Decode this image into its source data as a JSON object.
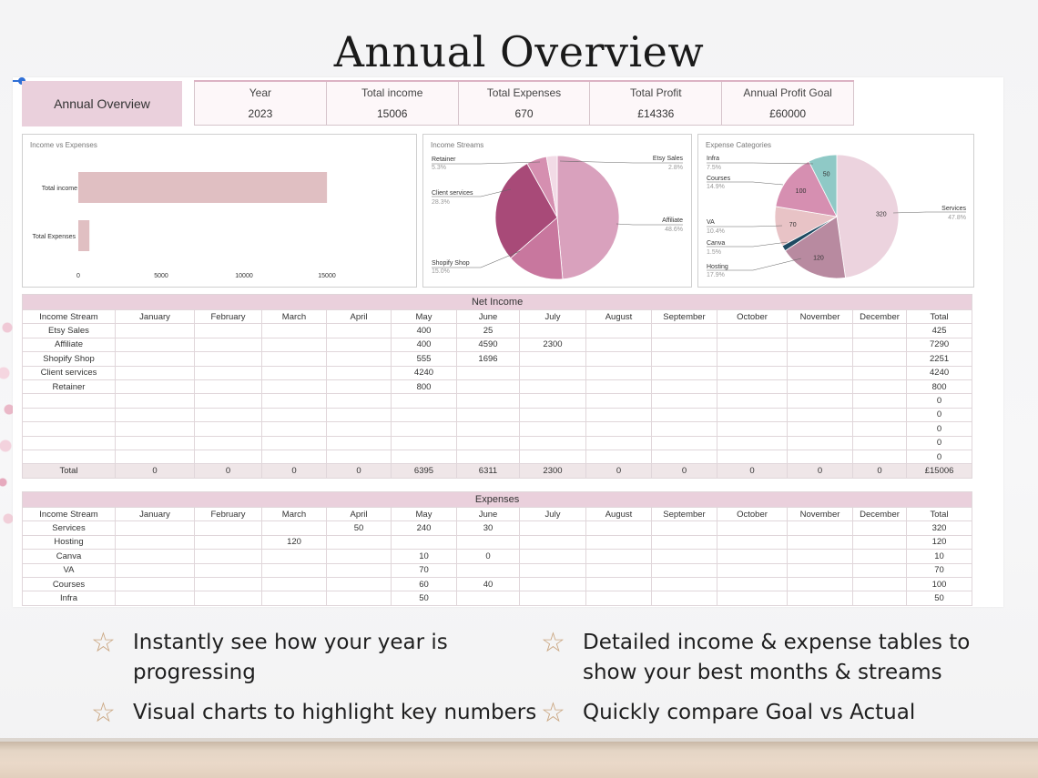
{
  "page_title": "Annual Overview",
  "overview_label": "Annual Overview",
  "kpis": [
    {
      "label": "Year",
      "value": "2023"
    },
    {
      "label": "Total income",
      "value": "15006"
    },
    {
      "label": "Total Expenses",
      "value": "670"
    },
    {
      "label": "Total Profit",
      "value": "£14336"
    },
    {
      "label": "Annual Profit Goal",
      "value": "£60000"
    }
  ],
  "charts": {
    "income_vs_expenses": {
      "title": "Income vs Expenses",
      "type": "bar",
      "categories": [
        "Total income",
        "Total Expenses"
      ],
      "values": [
        15006,
        670
      ],
      "ticks": [
        "0",
        "5000",
        "10000",
        "15000"
      ],
      "xlim": [
        0,
        15000
      ],
      "color": "#e0bfc2"
    },
    "income_streams": {
      "title": "Income Streams",
      "type": "pie",
      "slices": [
        {
          "label": "Affiliate",
          "pct": "48.6%",
          "value": 48.6,
          "color": "#d9a1bd"
        },
        {
          "label": "Shopify Shop",
          "pct": "15.0%",
          "value": 15.0,
          "color": "#c8779e"
        },
        {
          "label": "Client services",
          "pct": "28.3%",
          "value": 28.3,
          "color": "#a84a78"
        },
        {
          "label": "Retainer",
          "pct": "5.3%",
          "value": 5.3,
          "color": "#d58fb0"
        },
        {
          "label": "Etsy Sales",
          "pct": "2.8%",
          "value": 2.8,
          "color": "#f2dbe6"
        }
      ]
    },
    "expense_categories": {
      "title": "Expense Categories",
      "type": "pie",
      "slices": [
        {
          "label": "Services",
          "pct": "47.8%",
          "value": 320,
          "shown": "320",
          "color": "#ecd3de"
        },
        {
          "label": "Hosting",
          "pct": "17.9%",
          "value": 120,
          "shown": "120",
          "color": "#b88aa0"
        },
        {
          "label": "Canva",
          "pct": "1.5%",
          "value": 10,
          "shown": "",
          "color": "#1f4a62"
        },
        {
          "label": "VA",
          "pct": "10.4%",
          "value": 70,
          "shown": "70",
          "color": "#e8c3c6"
        },
        {
          "label": "Courses",
          "pct": "14.9%",
          "value": 100,
          "shown": "100",
          "color": "#d68fb1"
        },
        {
          "label": "Infra",
          "pct": "7.5%",
          "value": 50,
          "shown": "50",
          "color": "#8fc9c6"
        }
      ]
    }
  },
  "chart_data": [
    {
      "type": "bar",
      "title": "Income vs Expenses",
      "categories": [
        "Total income",
        "Total Expenses"
      ],
      "values": [
        15006,
        670
      ],
      "xlim": [
        0,
        15000
      ]
    },
    {
      "type": "pie",
      "title": "Income Streams",
      "categories": [
        "Affiliate",
        "Shopify Shop",
        "Client services",
        "Retainer",
        "Etsy Sales"
      ],
      "values": [
        48.6,
        15.0,
        28.3,
        5.3,
        2.8
      ]
    },
    {
      "type": "pie",
      "title": "Expense Categories",
      "categories": [
        "Services",
        "Hosting",
        "Canva",
        "VA",
        "Courses",
        "Infra"
      ],
      "values": [
        320,
        120,
        10,
        70,
        100,
        50
      ]
    }
  ],
  "net_income": {
    "title": "Net Income",
    "headers": [
      "Income Stream",
      "January",
      "February",
      "March",
      "April",
      "May",
      "June",
      "July",
      "August",
      "September",
      "October",
      "November",
      "December",
      "Total"
    ],
    "rows": [
      [
        "Etsy Sales",
        "",
        "",
        "",
        "",
        "400",
        "25",
        "",
        "",
        "",
        "",
        "",
        "",
        "425"
      ],
      [
        "Affiliate",
        "",
        "",
        "",
        "",
        "400",
        "4590",
        "2300",
        "",
        "",
        "",
        "",
        "",
        "7290"
      ],
      [
        "Shopify Shop",
        "",
        "",
        "",
        "",
        "555",
        "1696",
        "",
        "",
        "",
        "",
        "",
        "",
        "2251"
      ],
      [
        "Client services",
        "",
        "",
        "",
        "",
        "4240",
        "",
        "",
        "",
        "",
        "",
        "",
        "",
        "4240"
      ],
      [
        "Retainer",
        "",
        "",
        "",
        "",
        "800",
        "",
        "",
        "",
        "",
        "",
        "",
        "",
        "800"
      ],
      [
        "",
        "",
        "",
        "",
        "",
        "",
        "",
        "",
        "",
        "",
        "",
        "",
        "",
        "0"
      ],
      [
        "",
        "",
        "",
        "",
        "",
        "",
        "",
        "",
        "",
        "",
        "",
        "",
        "",
        "0"
      ],
      [
        "",
        "",
        "",
        "",
        "",
        "",
        "",
        "",
        "",
        "",
        "",
        "",
        "",
        "0"
      ],
      [
        "",
        "",
        "",
        "",
        "",
        "",
        "",
        "",
        "",
        "",
        "",
        "",
        "",
        "0"
      ],
      [
        "",
        "",
        "",
        "",
        "",
        "",
        "",
        "",
        "",
        "",
        "",
        "",
        "",
        "0"
      ]
    ],
    "total_row": [
      "Total",
      "0",
      "0",
      "0",
      "0",
      "6395",
      "6311",
      "2300",
      "0",
      "0",
      "0",
      "0",
      "0",
      "£15006"
    ]
  },
  "expenses": {
    "title": "Expenses",
    "headers": [
      "Income Stream",
      "January",
      "February",
      "March",
      "April",
      "May",
      "June",
      "July",
      "August",
      "September",
      "October",
      "November",
      "December",
      "Total"
    ],
    "rows": [
      [
        "Services",
        "",
        "",
        "",
        "50",
        "240",
        "30",
        "",
        "",
        "",
        "",
        "",
        "",
        "320"
      ],
      [
        "Hosting",
        "",
        "",
        "120",
        "",
        "",
        "",
        "",
        "",
        "",
        "",
        "",
        "",
        "120"
      ],
      [
        "Canva",
        "",
        "",
        "",
        "",
        "10",
        "0",
        "",
        "",
        "",
        "",
        "",
        "",
        "10"
      ],
      [
        "VA",
        "",
        "",
        "",
        "",
        "70",
        "",
        "",
        "",
        "",
        "",
        "",
        "",
        "70"
      ],
      [
        "Courses",
        "",
        "",
        "",
        "",
        "60",
        "40",
        "",
        "",
        "",
        "",
        "",
        "",
        "100"
      ],
      [
        "Infra",
        "",
        "",
        "",
        "",
        "50",
        "",
        "",
        "",
        "",
        "",
        "",
        "",
        "50"
      ]
    ]
  },
  "features": [
    {
      "icon": "star-outline-icon",
      "lines": [
        "Instantly see how your year is",
        "progressing"
      ]
    },
    {
      "icon": "star-outline-icon",
      "lines": [
        "Detailed income & expense tables to",
        "show your best months & streams"
      ]
    },
    {
      "icon": "star-outline-icon",
      "lines": [
        "Visual charts to highlight key numbers"
      ]
    },
    {
      "icon": "star-outline-icon",
      "lines": [
        "Quickly compare Goal vs Actual"
      ]
    }
  ]
}
